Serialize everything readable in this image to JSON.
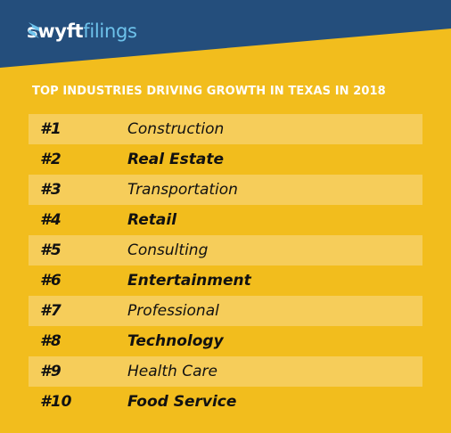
{
  "brand": {
    "name_primary": "swyft",
    "name_secondary": "filings",
    "icon": "swyft-s-logo-icon",
    "colors": {
      "banner": "#244e7c",
      "accent": "#6ec3ec",
      "background": "#f2bd1d"
    }
  },
  "heading": "TOP INDUSTRIES DRIVING GROWTH IN TEXAS IN 2018",
  "industries": [
    {
      "rank": "#1",
      "name": "Construction"
    },
    {
      "rank": "#2",
      "name": "Real Estate"
    },
    {
      "rank": "#3",
      "name": "Transportation"
    },
    {
      "rank": "#4",
      "name": "Retail"
    },
    {
      "rank": "#5",
      "name": "Consulting"
    },
    {
      "rank": "#6",
      "name": "Entertainment"
    },
    {
      "rank": "#7",
      "name": "Professional"
    },
    {
      "rank": "#8",
      "name": "Technology"
    },
    {
      "rank": "#9",
      "name": "Health Care"
    },
    {
      "rank": "#10",
      "name": "Food Service"
    }
  ]
}
